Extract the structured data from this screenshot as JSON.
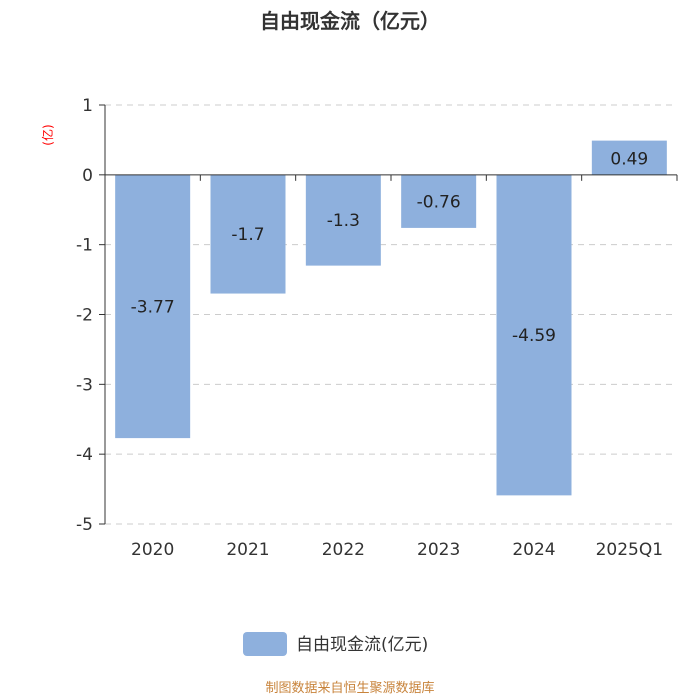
{
  "chart_data": {
    "type": "bar",
    "title": "自由现金流（亿元）",
    "unit_label": "(亿)",
    "categories": [
      "2020",
      "2021",
      "2022",
      "2023",
      "2024",
      "2025Q1"
    ],
    "series": [
      {
        "name": "自由现金流(亿元)",
        "values": [
          -3.77,
          -1.7,
          -1.3,
          -0.76,
          -4.59,
          0.49
        ]
      }
    ],
    "data_labels": [
      "-3.77",
      "-1.7",
      "-1.3",
      "-0.76",
      "-4.59",
      "0.49"
    ],
    "ylim": [
      -5,
      1
    ],
    "yticks": [
      1,
      0,
      -1,
      -2,
      -3,
      -4,
      -5
    ],
    "grid": true,
    "legend_position": "bottom"
  },
  "source": "制图数据来自恒生聚源数据库",
  "colors": {
    "bar": "#8eb0dd",
    "grid": "#cccccc",
    "axis": "#333333",
    "unit": "#ff0000",
    "source": "#c8843c"
  }
}
